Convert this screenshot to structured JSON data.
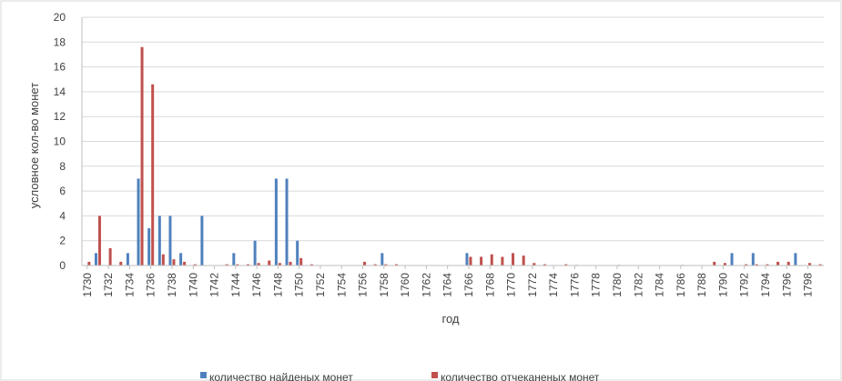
{
  "chart_data": {
    "type": "bar",
    "x": [
      1730,
      1731,
      1732,
      1733,
      1734,
      1735,
      1736,
      1737,
      1738,
      1739,
      1740,
      1741,
      1742,
      1743,
      1744,
      1745,
      1746,
      1747,
      1748,
      1749,
      1750,
      1751,
      1752,
      1753,
      1754,
      1755,
      1756,
      1757,
      1758,
      1759,
      1760,
      1761,
      1762,
      1763,
      1764,
      1765,
      1766,
      1767,
      1768,
      1769,
      1770,
      1771,
      1772,
      1773,
      1774,
      1775,
      1776,
      1777,
      1778,
      1779,
      1780,
      1781,
      1782,
      1783,
      1784,
      1785,
      1786,
      1787,
      1788,
      1789,
      1790,
      1791,
      1792,
      1793,
      1794,
      1795,
      1796,
      1797,
      1798,
      1799
    ],
    "tick_labels": [
      "1730",
      "1732",
      "1734",
      "1736",
      "1738",
      "1740",
      "1742",
      "1744",
      "1746",
      "1748",
      "1750",
      "1752",
      "1754",
      "1756",
      "1758",
      "1760",
      "1762",
      "1764",
      "1766",
      "1768",
      "1770",
      "1772",
      "1774",
      "1776",
      "1778",
      "1780",
      "1782",
      "1784",
      "1786",
      "1788",
      "1790",
      "1792",
      "1794",
      "1796",
      "1798"
    ],
    "y_ticks": [
      "0",
      "2",
      "4",
      "6",
      "8",
      "10",
      "12",
      "14",
      "16",
      "18",
      "20"
    ],
    "series": [
      {
        "name": "количество найденых монет",
        "color": "#4f81bd",
        "values": [
          0,
          1,
          0,
          0,
          1,
          7,
          3,
          4,
          4,
          1,
          0,
          4,
          0,
          0,
          1,
          0,
          2,
          0,
          7,
          7,
          2,
          0,
          0,
          0,
          0,
          0,
          0,
          0,
          1,
          0,
          0,
          0,
          0,
          0,
          0,
          0,
          1,
          0,
          0,
          0,
          0,
          0,
          0,
          0,
          0,
          0,
          0,
          0,
          0,
          0,
          0,
          0,
          0,
          0,
          0,
          0,
          0,
          0,
          0,
          0,
          0,
          1,
          0,
          1,
          0,
          0,
          0,
          1,
          0,
          0
        ]
      },
      {
        "name": "количество отчеканеных монет",
        "color": "#c0504d",
        "values": [
          0.3,
          4,
          1.4,
          0.3,
          0,
          17.6,
          14.6,
          0.9,
          0.5,
          0.3,
          0.1,
          0,
          0,
          0.1,
          0.1,
          0.1,
          0.2,
          0.4,
          0.2,
          0.3,
          0.6,
          0.1,
          0,
          0,
          0,
          0,
          0.3,
          0.1,
          0.1,
          0.1,
          0,
          0,
          0,
          0,
          0,
          0,
          0.7,
          0.7,
          0.9,
          0.7,
          1,
          0.8,
          0.2,
          0.1,
          0,
          0.1,
          0.05,
          0,
          0,
          0,
          0.05,
          0,
          0,
          0,
          0,
          0,
          0.05,
          0,
          0,
          0.3,
          0.2,
          0,
          0.1,
          0.1,
          0.1,
          0.3,
          0.3,
          0,
          0.2,
          0.1
        ]
      }
    ],
    "xlabel": "год",
    "ylabel": "условное кол-во монет",
    "ylim": [
      0,
      20
    ],
    "grid": true,
    "legend_position": "bottom"
  }
}
